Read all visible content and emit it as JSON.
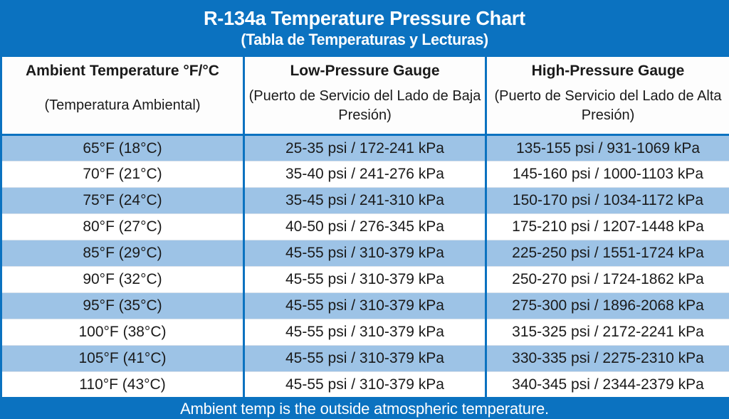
{
  "colors": {
    "blue": "#0b72c0",
    "row_light_blue": "#9dc3e6",
    "row_white": "#ffffff",
    "text_dark": "#1a1a1a",
    "text_white": "#ffffff"
  },
  "chart_data": {
    "type": "table",
    "title": "R-134a Temperature Pressure Chart",
    "subtitle": "(Tabla de Temperaturas y Lecturas)",
    "note": "Ambient temp is the outside atmospheric temperature.",
    "columns": [
      {
        "label": "Ambient Temperature °F/°C",
        "sublabel": "(Temperatura Ambiental)"
      },
      {
        "label": "Low-Pressure Gauge",
        "sublabel": "(Puerto de Servicio del Lado de Baja Presión)"
      },
      {
        "label": "High-Pressure Gauge",
        "sublabel": "(Puerto de Servicio del Lado de Alta Presión)"
      }
    ],
    "rows": [
      [
        "65°F (18°C)",
        "25-35 psi / 172-241 kPa",
        "135-155 psi / 931-1069 kPa"
      ],
      [
        "70°F (21°C)",
        "35-40 psi / 241-276 kPa",
        "145-160 psi / 1000-1103 kPa"
      ],
      [
        "75°F (24°C)",
        "35-45 psi / 241-310 kPa",
        "150-170 psi / 1034-1172 kPa"
      ],
      [
        "80°F (27°C)",
        "40-50 psi / 276-345 kPa",
        "175-210 psi / 1207-1448 kPa"
      ],
      [
        "85°F (29°C)",
        "45-55 psi / 310-379 kPa",
        "225-250 psi / 1551-1724 kPa"
      ],
      [
        "90°F (32°C)",
        "45-55 psi / 310-379 kPa",
        "250-270 psi / 1724-1862 kPa"
      ],
      [
        "95°F (35°C)",
        "45-55 psi / 310-379 kPa",
        "275-300 psi / 1896-2068 kPa"
      ],
      [
        "100°F (38°C)",
        "45-55 psi / 310-379 kPa",
        "315-325 psi / 2172-2241 kPa"
      ],
      [
        "105°F (41°C)",
        "45-55 psi / 310-379 kPa",
        "330-335 psi / 2275-2310 kPa"
      ],
      [
        "110°F (43°C)",
        "45-55 psi / 310-379 kPa",
        "340-345 psi / 2344-2379 kPa"
      ]
    ]
  }
}
